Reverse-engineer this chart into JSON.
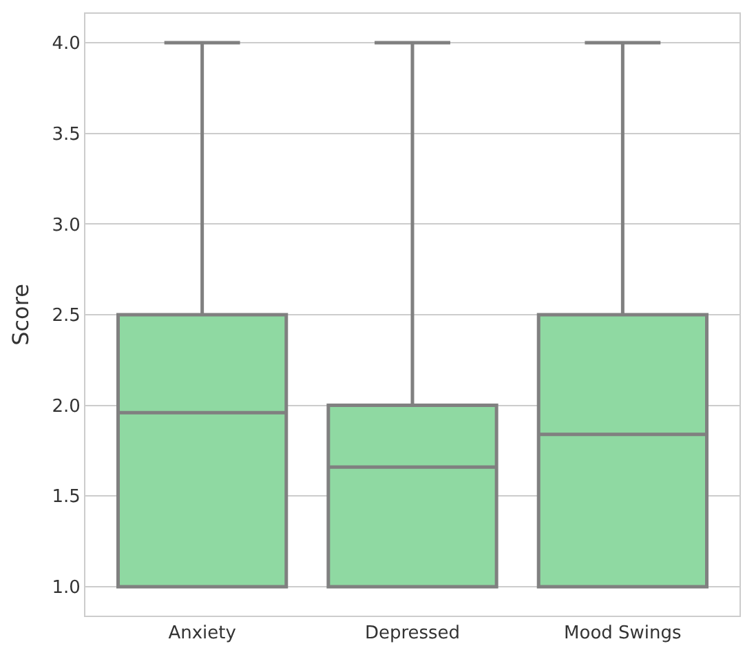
{
  "chart_data": {
    "type": "box",
    "ylabel": "Score",
    "categories": [
      "Anxiety",
      "Depressed",
      "Mood Swings"
    ],
    "boxes": [
      {
        "low": 1.0,
        "q1": 1.0,
        "median": 1.96,
        "q3": 2.5,
        "high": 4.0
      },
      {
        "low": 1.0,
        "q1": 1.0,
        "median": 1.66,
        "q3": 2.0,
        "high": 4.0
      },
      {
        "low": 1.0,
        "q1": 1.0,
        "median": 1.84,
        "q3": 2.5,
        "high": 4.0
      }
    ],
    "color": "#8fd9a2",
    "ylim": [
      0.84,
      4.16
    ],
    "yticks": [
      {
        "value": 1.0,
        "label": "1.0"
      },
      {
        "value": 1.5,
        "label": "1.5"
      },
      {
        "value": 2.0,
        "label": "2.0"
      },
      {
        "value": 2.5,
        "label": "2.5"
      },
      {
        "value": 3.0,
        "label": "3.0"
      },
      {
        "value": 3.5,
        "label": "3.5"
      },
      {
        "value": 4.0,
        "label": "4.0"
      }
    ],
    "grid": "y"
  }
}
